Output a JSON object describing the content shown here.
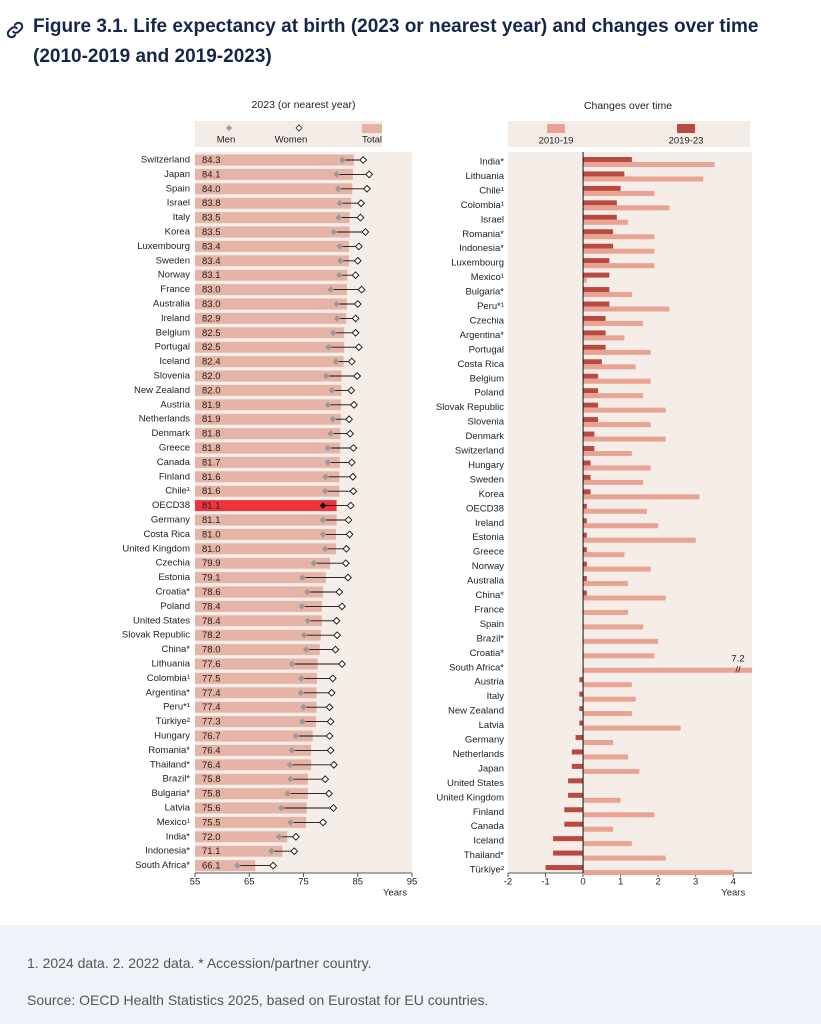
{
  "title": "Figure 3.1. Life expectancy at birth (2023 or nearest year) and changes over time (2010-2019 and 2019-2023)",
  "notes": [
    "1. 2024 data. 2. 2022 data. * Accession/partner country.",
    "Source: OECD Health Statistics 2025, based on Eurostat for EU countries."
  ],
  "chart_data": [
    {
      "type": "dot_bar",
      "title": "2023 (or nearest year)",
      "categories": [
        "Switzerland",
        "Japan",
        "Spain",
        "Israel",
        "Italy",
        "Korea",
        "Luxembourg",
        "Sweden",
        "Norway",
        "France",
        "Australia",
        "Ireland",
        "Belgium",
        "Portugal",
        "Iceland",
        "Slovenia",
        "New Zealand",
        "Austria",
        "Netherlands",
        "Denmark",
        "Greece",
        "Canada",
        "Finland",
        "Chile¹",
        "OECD38",
        "Germany",
        "Costa Rica",
        "United Kingdom",
        "Czechia",
        "Estonia",
        "Croatia*",
        "Poland",
        "United States",
        "Slovak Republic",
        "China*",
        "Lithuania",
        "Colombia¹",
        "Argentina*",
        "Peru*¹",
        "Türkiye²",
        "Hungary",
        "Romania*",
        "Thailand*",
        "Brazil*",
        "Bulgaria*",
        "Latvia",
        "Mexico¹",
        "India*",
        "Indonesia*",
        "South Africa*"
      ],
      "series": [
        {
          "name": "Men",
          "color": "#9a9a9a",
          "values": [
            82.2,
            81.1,
            81.4,
            81.7,
            81.5,
            80.6,
            81.7,
            81.8,
            81.6,
            80.0,
            81.1,
            81.2,
            80.5,
            79.6,
            81.0,
            79.2,
            80.3,
            79.5,
            80.4,
            80.0,
            79.5,
            79.5,
            79.1,
            79.0,
            78.6,
            78.6,
            78.6,
            79.0,
            76.9,
            74.8,
            75.7,
            74.7,
            75.8,
            75.1,
            75.5,
            72.9,
            74.6,
            74.5,
            75.0,
            74.8,
            73.6,
            72.9,
            72.5,
            72.6,
            72.1,
            70.9,
            72.6,
            70.5,
            69.1,
            62.8
          ]
        },
        {
          "name": "Women",
          "color": "#ffffff",
          "values": [
            86.0,
            87.1,
            86.7,
            85.6,
            85.5,
            86.4,
            85.2,
            85.0,
            84.6,
            85.7,
            85.0,
            84.6,
            84.6,
            85.2,
            83.9,
            84.9,
            83.8,
            84.3,
            83.4,
            83.6,
            84.2,
            83.9,
            84.1,
            84.2,
            83.7,
            83.3,
            83.5,
            82.9,
            82.8,
            83.2,
            81.6,
            82.1,
            81.1,
            81.2,
            80.9,
            82.1,
            80.4,
            80.2,
            79.8,
            80.0,
            79.8,
            80.0,
            80.6,
            79.0,
            79.7,
            80.5,
            78.6,
            73.6,
            73.3,
            69.4
          ]
        },
        {
          "name": "Total",
          "color": "#e6b4a6",
          "values": [
            84.3,
            84.1,
            84.0,
            83.8,
            83.5,
            83.5,
            83.4,
            83.4,
            83.1,
            83.0,
            83.0,
            82.9,
            82.5,
            82.5,
            82.4,
            82.0,
            82.0,
            81.9,
            81.9,
            81.8,
            81.8,
            81.7,
            81.6,
            81.6,
            81.1,
            81.1,
            81.0,
            81.0,
            79.9,
            79.1,
            78.6,
            78.4,
            78.4,
            78.2,
            78.0,
            77.6,
            77.5,
            77.4,
            77.4,
            77.3,
            76.7,
            76.4,
            76.4,
            75.8,
            75.8,
            75.6,
            75.5,
            72.0,
            71.1,
            66.1
          ],
          "value_labels": [
            "84.3",
            "84.1",
            "84.0",
            "83.8",
            "83.5",
            "83.5",
            "83.4",
            "83.4",
            "83.1",
            "83.0",
            "83.0",
            "82.9",
            "82.5",
            "82.5",
            "82.4",
            "82.0",
            "82.0",
            "81.9",
            "81.9",
            "81.8",
            "81.8",
            "81.7",
            "81.6",
            "81.6",
            "81.1",
            "81.1",
            "81.0",
            "81.0",
            "79.9",
            "79.1",
            "78.6",
            "78.4",
            "78.4",
            "78.2",
            "78.0",
            "77.6",
            "77.5",
            "77.4",
            "77.4",
            "77.3",
            "76.7",
            "76.4",
            "76.4",
            "75.8",
            "75.8",
            "75.6",
            "75.5",
            "72.0",
            "71.1",
            "66.1"
          ]
        }
      ],
      "highlight": {
        "category": "OECD38",
        "color": "#f0323c"
      },
      "xlim": [
        55,
        95
      ],
      "xticks": [
        55,
        65,
        75,
        85,
        95
      ],
      "x_label": "Years"
    },
    {
      "type": "grouped_barh",
      "title": "Changes over time",
      "categories": [
        "India*",
        "Lithuania",
        "Chile¹",
        "Colombia¹",
        "Israel",
        "Romania*",
        "Indonesia*",
        "Luxembourg",
        "Mexico¹",
        "Bulgaria*",
        "Peru*¹",
        "Czechia",
        "Argentina*",
        "Portugal",
        "Costa Rica",
        "Belgium",
        "Poland",
        "Slovak Republic",
        "Slovenia",
        "Denmark",
        "Switzerland",
        "Hungary",
        "Sweden",
        "Korea",
        "OECD38",
        "Ireland",
        "Estonia",
        "Greece",
        "Norway",
        "Australia",
        "China*",
        "France",
        "Spain",
        "Brazil*",
        "Croatia*",
        "South Africa*",
        "Austria",
        "Italy",
        "New Zealand",
        "Latvia",
        "Germany",
        "Netherlands",
        "Japan",
        "United States",
        "United Kingdom",
        "Finland",
        "Canada",
        "Iceland",
        "Thailand*",
        "Türkiye²"
      ],
      "series": [
        {
          "name": "2010-19",
          "color": "#e8a393",
          "values": [
            3.5,
            3.2,
            1.9,
            2.3,
            1.2,
            1.9,
            1.9,
            1.9,
            0.1,
            1.3,
            2.3,
            1.6,
            1.1,
            1.8,
            1.4,
            1.8,
            1.6,
            2.2,
            1.8,
            2.2,
            1.3,
            1.8,
            1.6,
            3.1,
            1.7,
            2.0,
            3.0,
            1.1,
            1.8,
            1.2,
            2.2,
            1.2,
            1.6,
            2.0,
            1.9,
            7.2,
            1.3,
            1.4,
            1.3,
            2.6,
            0.8,
            1.2,
            1.5,
            0.0,
            1.0,
            1.9,
            0.8,
            1.3,
            2.2,
            4.0
          ],
          "value_labels": [
            null,
            null,
            null,
            null,
            null,
            null,
            null,
            null,
            null,
            null,
            null,
            null,
            null,
            null,
            null,
            null,
            null,
            null,
            null,
            null,
            null,
            null,
            null,
            null,
            null,
            null,
            null,
            null,
            null,
            null,
            null,
            null,
            null,
            null,
            null,
            "7.2",
            null,
            null,
            null,
            null,
            null,
            null,
            null,
            null,
            null,
            null,
            null,
            null,
            null,
            null
          ]
        },
        {
          "name": "2019-23",
          "color": "#b84a40",
          "values": [
            1.3,
            1.1,
            1.0,
            0.9,
            0.9,
            0.8,
            0.8,
            0.7,
            0.7,
            0.7,
            0.7,
            0.6,
            0.6,
            0.6,
            0.5,
            0.4,
            0.4,
            0.4,
            0.4,
            0.3,
            0.3,
            0.2,
            0.2,
            0.2,
            0.1,
            0.1,
            0.1,
            0.1,
            0.1,
            0.1,
            0.1,
            0.0,
            0.0,
            0.0,
            0.0,
            0.0,
            -0.1,
            -0.1,
            -0.1,
            -0.1,
            -0.2,
            -0.3,
            -0.3,
            -0.4,
            -0.4,
            -0.5,
            -0.5,
            -0.8,
            -0.8,
            -1.0
          ]
        }
      ],
      "xlim": [
        -2,
        4.5
      ],
      "xticks": [
        -2,
        -1,
        0,
        1,
        2,
        3,
        4
      ],
      "x_label": "Years"
    }
  ]
}
